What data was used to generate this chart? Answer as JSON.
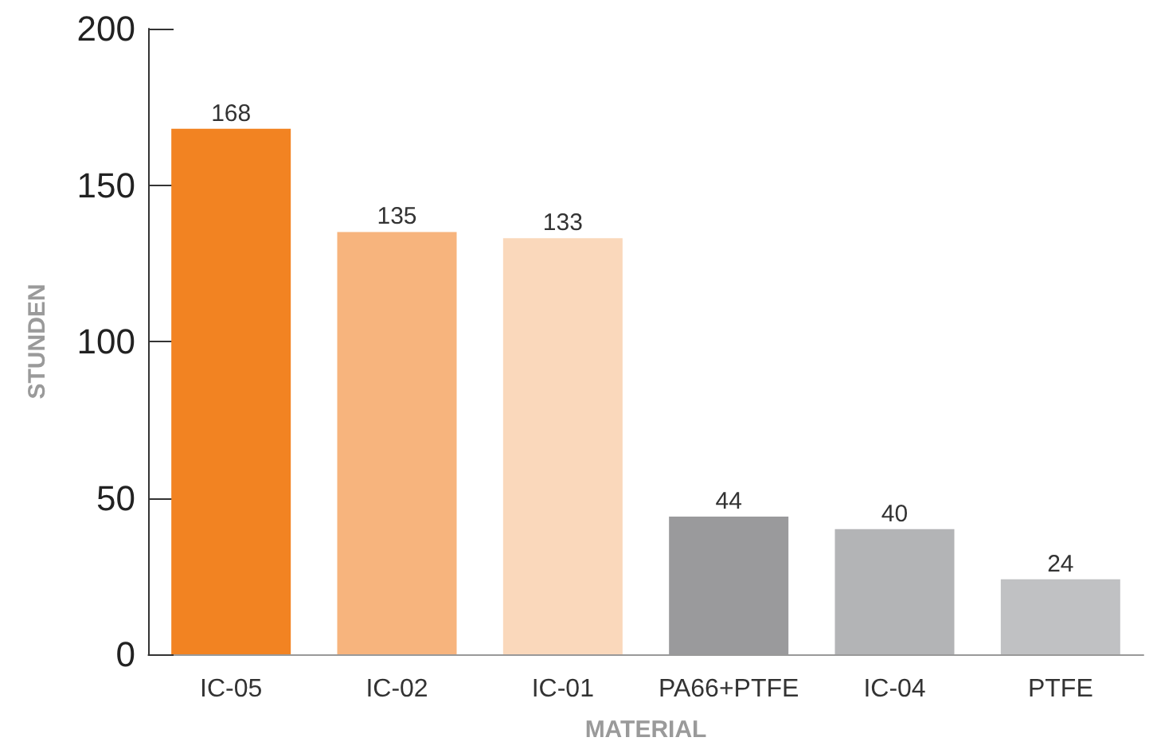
{
  "chart_data": {
    "type": "bar",
    "xlabel": "MATERIAL",
    "ylabel": "STUNDEN",
    "categories": [
      "IC-05",
      "IC-02",
      "IC-01",
      "PA66+PTFE",
      "IC-04",
      "PTFE"
    ],
    "values": [
      168,
      135,
      133,
      44,
      40,
      24
    ],
    "colors": [
      "#f28322",
      "#f7b47d",
      "#fad8bb",
      "#9a9a9c",
      "#b3b4b6",
      "#c0c1c3"
    ],
    "ylim": [
      0,
      200
    ],
    "yticks": [
      0,
      50,
      100,
      150,
      200
    ],
    "grid": false,
    "data_labels": true
  }
}
